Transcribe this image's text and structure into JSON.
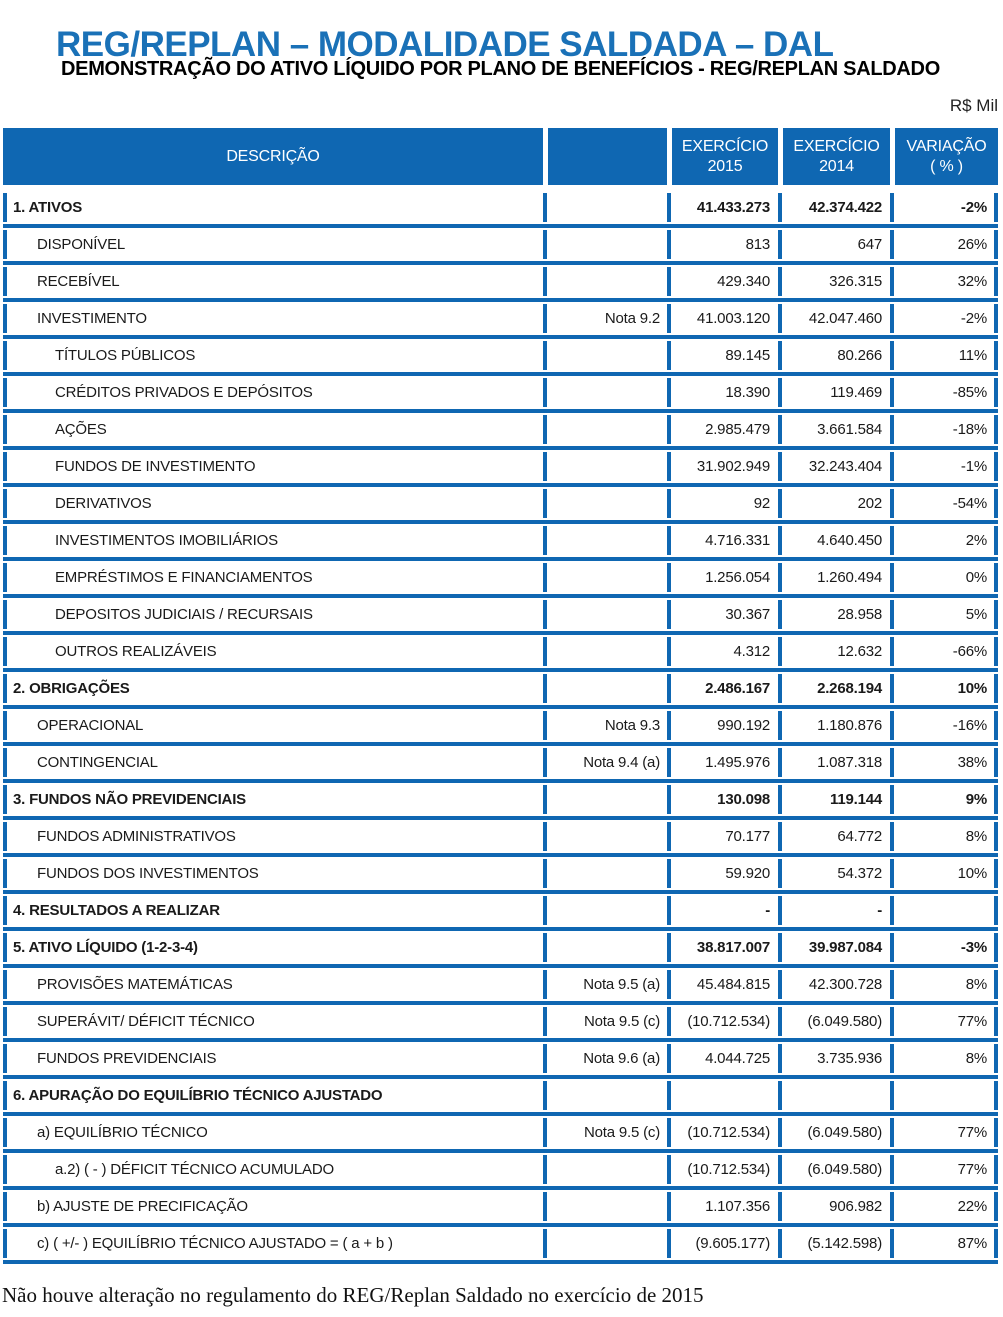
{
  "page_title": "REG/REPLAN – MODALIDADE SALDADA – DAL",
  "table_title": "DEMONSTRAÇÃO DO ATIVO LÍQUIDO POR PLANO DE BENEFÍCIOS - REG/REPLAN SALDADO",
  "unit_label": "R$ Mil",
  "footnote": "Não houve alteração no regulamento do REG/Replan Saldado no exercício de 2015",
  "colors": {
    "table_blue": "#0f67b2",
    "title_blue": "#1a71b7"
  },
  "table": {
    "header": {
      "descricao": "DESCRIÇÃO",
      "nota": "",
      "exercicio2015_line1": "EXERCÍCIO",
      "exercicio2015_line2": "2015",
      "exercicio2014_line1": "EXERCÍCIO",
      "exercicio2014_line2": "2014",
      "variacao_line1": "VARIAÇÃO",
      "variacao_line2": "( % )"
    },
    "rows": [
      {
        "label": "1. ATIVOS",
        "note": "",
        "v2015": "41.433.273",
        "v2014": "42.374.422",
        "var": "-2%",
        "level": 0,
        "bold": true
      },
      {
        "label": "DISPONÍVEL",
        "note": "",
        "v2015": "813",
        "v2014": "647",
        "var": "26%",
        "level": 1,
        "bold": false
      },
      {
        "label": "RECEBÍVEL",
        "note": "",
        "v2015": "429.340",
        "v2014": "326.315",
        "var": "32%",
        "level": 1,
        "bold": false
      },
      {
        "label": "INVESTIMENTO",
        "note": "Nota 9.2",
        "v2015": "41.003.120",
        "v2014": "42.047.460",
        "var": "-2%",
        "level": 1,
        "bold": false
      },
      {
        "label": "TÍTULOS PÚBLICOS",
        "note": "",
        "v2015": "89.145",
        "v2014": "80.266",
        "var": "11%",
        "level": 2,
        "bold": false
      },
      {
        "label": "CRÉDITOS PRIVADOS E DEPÓSITOS",
        "note": "",
        "v2015": "18.390",
        "v2014": "119.469",
        "var": "-85%",
        "level": 2,
        "bold": false
      },
      {
        "label": "AÇÕES",
        "note": "",
        "v2015": "2.985.479",
        "v2014": "3.661.584",
        "var": "-18%",
        "level": 2,
        "bold": false
      },
      {
        "label": "FUNDOS DE INVESTIMENTO",
        "note": "",
        "v2015": "31.902.949",
        "v2014": "32.243.404",
        "var": "-1%",
        "level": 2,
        "bold": false
      },
      {
        "label": "DERIVATIVOS",
        "note": "",
        "v2015": "92",
        "v2014": "202",
        "var": "-54%",
        "level": 2,
        "bold": false
      },
      {
        "label": "INVESTIMENTOS IMOBILIÁRIOS",
        "note": "",
        "v2015": "4.716.331",
        "v2014": "4.640.450",
        "var": "2%",
        "level": 2,
        "bold": false
      },
      {
        "label": "EMPRÉSTIMOS E FINANCIAMENTOS",
        "note": "",
        "v2015": "1.256.054",
        "v2014": "1.260.494",
        "var": "0%",
        "level": 2,
        "bold": false
      },
      {
        "label": "DEPOSITOS JUDICIAIS / RECURSAIS",
        "note": "",
        "v2015": "30.367",
        "v2014": "28.958",
        "var": "5%",
        "level": 2,
        "bold": false
      },
      {
        "label": "OUTROS REALIZÁVEIS",
        "note": "",
        "v2015": "4.312",
        "v2014": "12.632",
        "var": "-66%",
        "level": 2,
        "bold": false
      },
      {
        "label": "2. OBRIGAÇÕES",
        "note": "",
        "v2015": "2.486.167",
        "v2014": "2.268.194",
        "var": "10%",
        "level": 0,
        "bold": true
      },
      {
        "label": "OPERACIONAL",
        "note": "Nota 9.3",
        "v2015": "990.192",
        "v2014": "1.180.876",
        "var": "-16%",
        "level": 1,
        "bold": false
      },
      {
        "label": "CONTINGENCIAL",
        "note": "Nota 9.4 (a)",
        "v2015": "1.495.976",
        "v2014": "1.087.318",
        "var": "38%",
        "level": 1,
        "bold": false
      },
      {
        "label": "3. FUNDOS NÃO PREVIDENCIAIS",
        "note": "",
        "v2015": "130.098",
        "v2014": "119.144",
        "var": "9%",
        "level": 0,
        "bold": true
      },
      {
        "label": "FUNDOS ADMINISTRATIVOS",
        "note": "",
        "v2015": "70.177",
        "v2014": "64.772",
        "var": "8%",
        "level": 1,
        "bold": false
      },
      {
        "label": "FUNDOS DOS INVESTIMENTOS",
        "note": "",
        "v2015": "59.920",
        "v2014": "54.372",
        "var": "10%",
        "level": 1,
        "bold": false
      },
      {
        "label": "4. RESULTADOS A REALIZAR",
        "note": "",
        "v2015": "-",
        "v2014": "-",
        "var": "",
        "level": 0,
        "bold": true
      },
      {
        "label": "5. ATIVO LÍQUIDO (1-2-3-4)",
        "note": "",
        "v2015": "38.817.007",
        "v2014": "39.987.084",
        "var": "-3%",
        "level": 0,
        "bold": true
      },
      {
        "label": "PROVISÕES MATEMÁTICAS",
        "note": "Nota 9.5 (a)",
        "v2015": "45.484.815",
        "v2014": "42.300.728",
        "var": "8%",
        "level": 1,
        "bold": false
      },
      {
        "label": "SUPERÁVIT/ DÉFICIT TÉCNICO",
        "note": "Nota 9.5 (c)",
        "v2015": "(10.712.534)",
        "v2014": "(6.049.580)",
        "var": "77%",
        "level": 1,
        "bold": false
      },
      {
        "label": "FUNDOS PREVIDENCIAIS",
        "note": "Nota 9.6 (a)",
        "v2015": "4.044.725",
        "v2014": "3.735.936",
        "var": "8%",
        "level": 1,
        "bold": false
      },
      {
        "label": "6. APURAÇÃO DO EQUILÍBRIO TÉCNICO AJUSTADO",
        "note": "",
        "v2015": "",
        "v2014": "",
        "var": "",
        "level": 0,
        "bold": true
      },
      {
        "label": "a) EQUILÍBRIO TÉCNICO",
        "note": "Nota 9.5 (c)",
        "v2015": "(10.712.534)",
        "v2014": "(6.049.580)",
        "var": "77%",
        "level": 1,
        "bold": false
      },
      {
        "label": "a.2) ( - ) DÉFICIT TÉCNICO ACUMULADO",
        "note": "",
        "v2015": "(10.712.534)",
        "v2014": "(6.049.580)",
        "var": "77%",
        "level": 2,
        "bold": false
      },
      {
        "label": "b) AJUSTE DE PRECIFICAÇÃO",
        "note": "",
        "v2015": "1.107.356",
        "v2014": "906.982",
        "var": "22%",
        "level": 1,
        "bold": false
      },
      {
        "label": "c) ( +/- ) EQUILÍBRIO TÉCNICO AJUSTADO = ( a + b )",
        "note": "",
        "v2015": "(9.605.177)",
        "v2014": "(5.142.598)",
        "var": "87%",
        "level": 1,
        "bold": false
      }
    ]
  }
}
